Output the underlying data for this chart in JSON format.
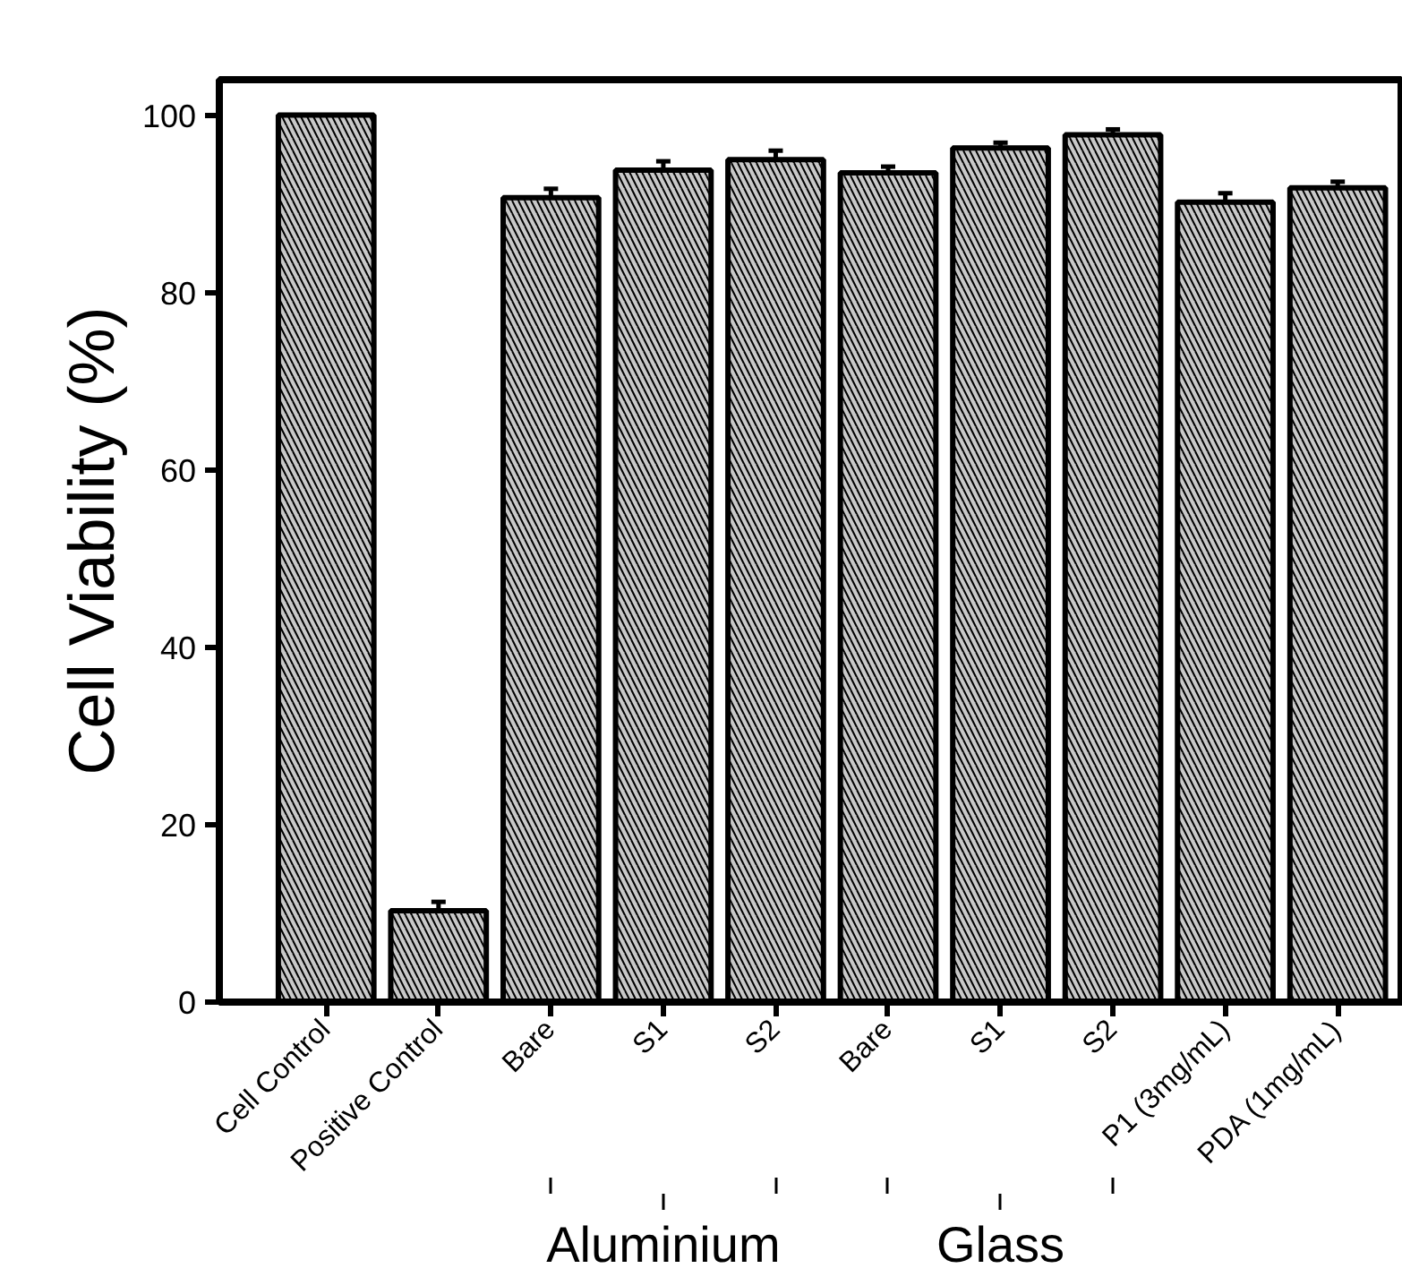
{
  "chart_data": {
    "type": "bar",
    "ylabel": "Cell Viability (%)",
    "categories": [
      "Cell Control",
      "Positive Control",
      "Bare",
      "S1",
      "S2",
      "Bare",
      "S1",
      "S2",
      "P1 (3mg/mL)",
      "PDA (1mg/mL)"
    ],
    "values": [
      100,
      10.3,
      90.7,
      93.8,
      95.0,
      93.5,
      96.3,
      97.8,
      90.2,
      91.8
    ],
    "errors": [
      null,
      1.0,
      1.0,
      1.0,
      1.0,
      0.7,
      0.6,
      0.6,
      1.0,
      0.7
    ],
    "color": "#c8c8c8",
    "ylim": [
      0,
      104
    ],
    "yticks": [
      0,
      20,
      40,
      60,
      80,
      100
    ],
    "grid": false,
    "annotations": [
      "Aluminium",
      "Glass"
    ]
  }
}
